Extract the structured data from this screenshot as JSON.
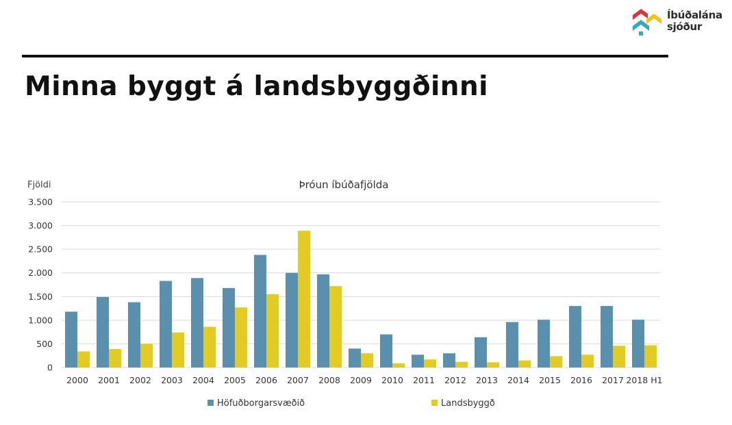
{
  "logo": {
    "line1": "Íbúðalána",
    "line2": "sjóður"
  },
  "slide": {
    "title": "Minna byggt á landsbyggðinni"
  },
  "colors": {
    "series1": "#5b8fae",
    "series2": "#e3cb26",
    "grid": "#d9d9d9",
    "logo_red": "#d9363e",
    "logo_yellow": "#f0c419",
    "logo_teal": "#3aa6b9"
  },
  "chart_data": {
    "type": "bar",
    "title": "Þróun íbúðafjölda",
    "ylabel": "Fjöldi",
    "xlabel": "",
    "ylim": [
      0,
      3500
    ],
    "yticks": [
      0,
      500,
      1000,
      1500,
      2000,
      2500,
      3000,
      3500
    ],
    "ytick_labels": [
      "0",
      "500",
      "1.000",
      "1.500",
      "2.000",
      "2.500",
      "3.000",
      "3.500"
    ],
    "categories": [
      "2000",
      "2001",
      "2002",
      "2003",
      "2004",
      "2005",
      "2006",
      "2007",
      "2008",
      "2009",
      "2010",
      "2011",
      "2012",
      "2013",
      "2014",
      "2015",
      "2016",
      "2017",
      "2018 H1"
    ],
    "series": [
      {
        "name": "Höfuðborgarsvæðið",
        "values": [
          1180,
          1490,
          1380,
          1830,
          1890,
          1680,
          2380,
          2000,
          1970,
          400,
          700,
          270,
          300,
          640,
          960,
          1010,
          1300,
          1300,
          1010
        ]
      },
      {
        "name": "Landsbyggð",
        "values": [
          340,
          390,
          500,
          740,
          860,
          1270,
          1550,
          2890,
          1720,
          300,
          90,
          170,
          120,
          110,
          150,
          240,
          270,
          460,
          470
        ]
      }
    ],
    "grid": true,
    "legend": "bottom"
  }
}
